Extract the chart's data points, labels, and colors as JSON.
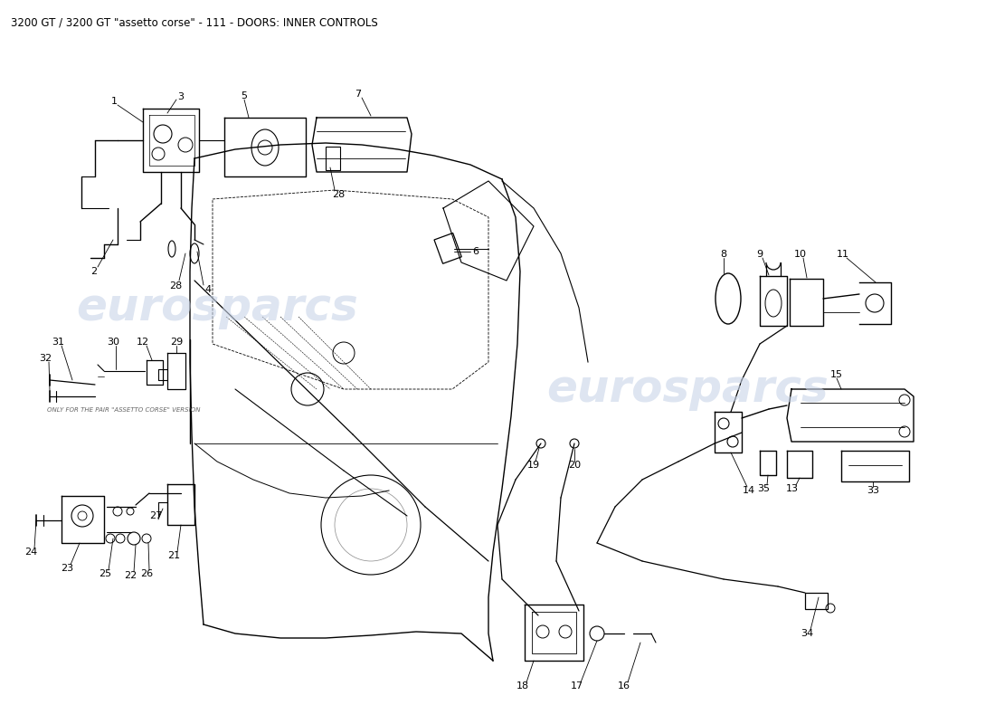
{
  "title": "3200 GT / 3200 GT \"assetto corse\" - 111 - DOORS: INNER CONTROLS",
  "title_fontsize": 8.5,
  "title_color": "#000000",
  "background_color": "#ffffff",
  "watermark_color": "#c8d4e8",
  "watermark_fontsize": 36,
  "line_color": "#000000",
  "label_fontsize": 8,
  "lw_main": 1.0,
  "lw_thin": 0.7,
  "lw_leader": 0.6,
  "note_text": "ONLY FOR THE PAIR \"ASSETTO CORSE\" VERSION",
  "note_fontsize": 5
}
